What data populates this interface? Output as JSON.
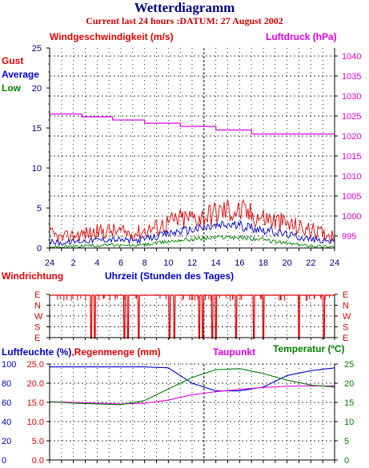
{
  "title": "Wetterdiagramm",
  "subtitle": "Current last 24 hours :DATUM: 27 August 2002",
  "colors": {
    "red": "#e00000",
    "blue": "#0000c8",
    "green": "#008000",
    "magenta": "#e000e0",
    "black": "#000000",
    "grid": "#000000"
  },
  "chart_data": [
    {
      "type": "line",
      "ylabel_left": "Windgeschwindigkeit (m/s)",
      "ylabel_right": "Luftdruck (hPa)",
      "legend": [
        "Gust",
        "Average",
        "Low"
      ],
      "ylim_left": [
        0,
        25
      ],
      "left_ticks": [
        "0",
        "5",
        "10",
        "15",
        "20",
        "25"
      ],
      "ylim_right": [
        992,
        1042
      ],
      "right_ticks": [
        "995",
        "1000",
        "1005",
        "1010",
        "1015",
        "1020",
        "1025",
        "1030",
        "1035",
        "1040"
      ],
      "xlabel": "Uhrzeit (Stunden des Tages)",
      "x_ticks": [
        "24",
        "2",
        "4",
        "6",
        "8",
        "10",
        "12",
        "14",
        "16",
        "18",
        "20",
        "22",
        "24"
      ],
      "grid": true,
      "series": [
        {
          "name": "Gust",
          "color": "#e00000",
          "x": [
            0,
            1,
            2,
            3,
            4,
            5,
            6,
            7,
            8,
            9,
            10,
            11,
            12,
            13,
            14,
            15,
            16,
            17,
            18,
            19,
            20,
            21,
            22,
            23,
            24
          ],
          "y": [
            1.8,
            1.2,
            1.6,
            1.8,
            2.0,
            2.2,
            2.0,
            1.8,
            2.2,
            2.6,
            3.2,
            3.6,
            3.8,
            4.0,
            4.4,
            4.8,
            4.6,
            4.2,
            3.8,
            3.4,
            3.0,
            2.6,
            2.2,
            1.8,
            1.6
          ]
        },
        {
          "name": "Average",
          "color": "#0000c8",
          "x": [
            0,
            1,
            2,
            3,
            4,
            5,
            6,
            7,
            8,
            9,
            10,
            11,
            12,
            13,
            14,
            15,
            16,
            17,
            18,
            19,
            20,
            21,
            22,
            23,
            24
          ],
          "y": [
            0.8,
            0.6,
            0.8,
            0.9,
            1.0,
            1.1,
            1.0,
            0.9,
            1.1,
            1.4,
            1.8,
            2.1,
            2.3,
            2.5,
            2.7,
            2.9,
            2.8,
            2.6,
            2.3,
            2.0,
            1.7,
            1.4,
            1.1,
            0.9,
            0.8
          ]
        },
        {
          "name": "Low",
          "color": "#008000",
          "x": [
            0,
            1,
            2,
            3,
            4,
            5,
            6,
            7,
            8,
            9,
            10,
            11,
            12,
            13,
            14,
            15,
            16,
            17,
            18,
            19,
            20,
            21,
            22,
            23,
            24
          ],
          "y": [
            0.2,
            0.1,
            0.2,
            0.3,
            0.3,
            0.4,
            0.3,
            0.3,
            0.4,
            0.6,
            0.8,
            1.0,
            1.1,
            1.2,
            1.3,
            1.4,
            1.3,
            1.2,
            1.0,
            0.8,
            0.6,
            0.4,
            0.3,
            0.2,
            0.2
          ]
        },
        {
          "name": "Luftdruck",
          "color": "#e000e0",
          "axis": "right",
          "x": [
            0,
            2.7,
            2.7,
            5.3,
            5.3,
            8.0,
            8.0,
            11.0,
            11.0,
            14.0,
            14.0,
            17.0,
            17.0,
            24
          ],
          "y": [
            1025.5,
            1025.5,
            1024.8,
            1024.8,
            1024.0,
            1024.0,
            1023.2,
            1023.2,
            1022.4,
            1022.4,
            1021.5,
            1021.5,
            1020.5,
            1020.5
          ]
        }
      ]
    },
    {
      "type": "line",
      "title": "Windrichtung",
      "xlabel": "Uhrzeit (Stunden des Tages)",
      "y_ticks": [
        "E",
        "N",
        "W",
        "S",
        "E"
      ],
      "grid": true,
      "series": [
        {
          "name": "Windrichtung",
          "color": "#e00000",
          "base": "E",
          "dips_hours": [
            3.5,
            3.8,
            6.3,
            6.6,
            7.5,
            10.1,
            10.5,
            12.6,
            12.9,
            13.7,
            14.0,
            15.7,
            17.2,
            18.0,
            21.0,
            23.1
          ]
        }
      ]
    },
    {
      "type": "line",
      "ylabel_left": "Luftfeuchte (%),Regenmenge (mm)",
      "ylabel_right": "Temperatur (ºC)",
      "legend": [
        "Taupunkt"
      ],
      "left_ticks": [
        "0.0",
        "5.0",
        "10.0",
        "15.0",
        "20.0",
        "25.0"
      ],
      "left_ticks_outer": [
        "0",
        "20",
        "40",
        "60",
        "80",
        "100"
      ],
      "right_ticks": [
        "0",
        "5",
        "10",
        "15",
        "20",
        "25"
      ],
      "ylim": [
        0,
        25
      ],
      "grid": true,
      "series": [
        {
          "name": "Luftfeuchte",
          "color": "#0000c8",
          "unit": "%",
          "x": [
            0,
            2,
            4,
            6,
            8,
            10,
            12,
            14,
            16,
            18,
            20,
            22,
            24
          ],
          "y": [
            97,
            97,
            97,
            97,
            97,
            96,
            80,
            72,
            72,
            76,
            88,
            93,
            96
          ]
        },
        {
          "name": "Taupunkt",
          "color": "#e000e0",
          "unit": "ºC",
          "x": [
            0,
            2,
            4,
            6,
            8,
            10,
            12,
            14,
            16,
            18,
            20,
            22,
            24
          ],
          "y": [
            15.2,
            15.0,
            14.8,
            14.6,
            14.8,
            15.6,
            17.0,
            17.8,
            18.4,
            18.9,
            19.2,
            19.3,
            19.3
          ]
        },
        {
          "name": "Temperatur",
          "color": "#008000",
          "unit": "ºC",
          "x": [
            0,
            2,
            4,
            6,
            8,
            10,
            12,
            14,
            16,
            18,
            20,
            22,
            24
          ],
          "y": [
            15.2,
            14.8,
            14.6,
            14.4,
            15.5,
            18.5,
            21.5,
            23.5,
            23.8,
            22.5,
            20.8,
            19.5,
            19.0
          ]
        },
        {
          "name": "Regenmenge",
          "color": "#e00000",
          "unit": "mm",
          "x": [
            0,
            24
          ],
          "y": [
            0,
            0
          ]
        }
      ]
    }
  ]
}
